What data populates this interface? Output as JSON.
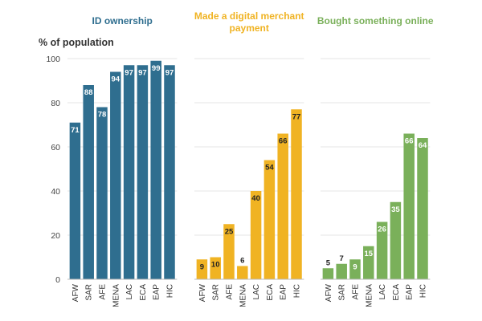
{
  "chart_data": {
    "type": "bar",
    "ylabel": "% of population",
    "ylim": [
      0,
      100
    ],
    "yticks": [
      0,
      20,
      40,
      60,
      80,
      100
    ],
    "grid": true,
    "categories": [
      "AFW",
      "SAR",
      "AFE",
      "MENA",
      "LAC",
      "ECA",
      "EAP",
      "HIC"
    ],
    "series": [
      {
        "name": "ID ownership",
        "color": "#2f6e8f",
        "label_color": "#ffffff",
        "values": [
          71,
          88,
          78,
          94,
          97,
          97,
          99,
          97
        ]
      },
      {
        "name": "Made a digital merchant payment",
        "color": "#f0b323",
        "label_color": "#222222",
        "values": [
          9,
          10,
          25,
          6,
          40,
          54,
          66,
          77
        ]
      },
      {
        "name": "Bought something online",
        "color": "#7ab05a",
        "label_color": "#ffffff",
        "values": [
          5,
          7,
          9,
          15,
          26,
          35,
          66,
          64
        ]
      }
    ]
  }
}
